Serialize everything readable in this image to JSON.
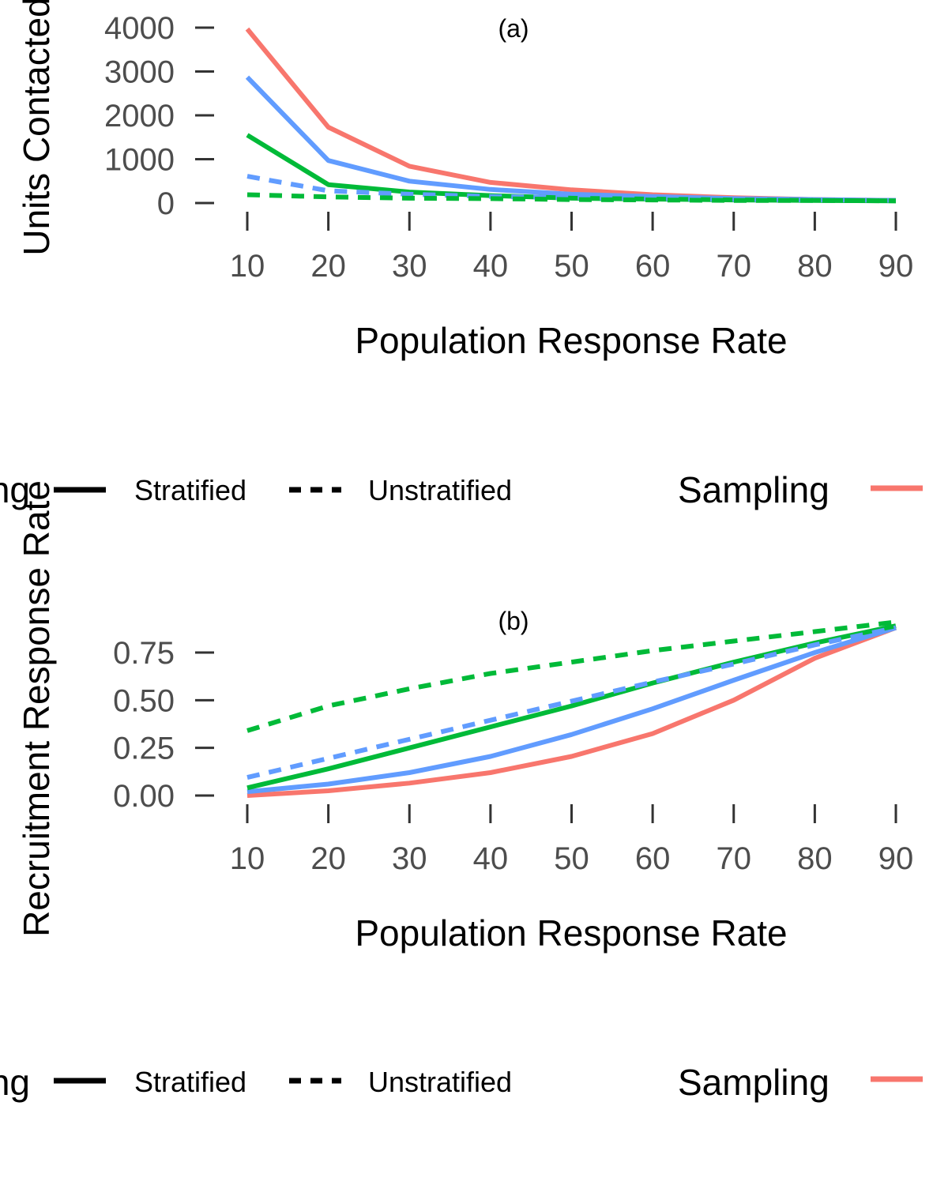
{
  "chart_data": [
    {
      "type": "line",
      "panel_label": "(a)",
      "xlabel": "Population Response Rate",
      "ylabel": "Units Contacted",
      "x": [
        10,
        20,
        30,
        40,
        50,
        60,
        70,
        80,
        90
      ],
      "x_ticks": [
        "10",
        "20",
        "30",
        "40",
        "50",
        "60",
        "70",
        "80",
        "90"
      ],
      "ylim": [
        0,
        4000
      ],
      "y_ticks": [
        "0",
        "1000",
        "2000",
        "3000",
        "4000"
      ],
      "grid": false,
      "series": [
        {
          "color": "#F8766D",
          "linetype": "solid",
          "values": [
            3970,
            1730,
            840,
            470,
            300,
            190,
            120,
            80,
            60
          ]
        },
        {
          "color": "#619CFF",
          "linetype": "solid",
          "values": [
            2870,
            970,
            500,
            310,
            200,
            150,
            100,
            80,
            60
          ]
        },
        {
          "color": "#00BA38",
          "linetype": "solid",
          "values": [
            1550,
            420,
            250,
            170,
            110,
            90,
            70,
            60,
            50
          ]
        },
        {
          "color": "#619CFF",
          "linetype": "dashed",
          "values": [
            610,
            280,
            200,
            150,
            120,
            100,
            80,
            70,
            60
          ]
        },
        {
          "color": "#00BA38",
          "linetype": "dashed",
          "values": [
            190,
            140,
            110,
            100,
            80,
            70,
            60,
            60,
            50
          ]
        }
      ],
      "legend": {
        "linetype_title": "Sampling",
        "linetype_entries": [
          "Stratified",
          "Unstratified"
        ],
        "color_title": "Sampling",
        "placement": "bottom"
      }
    },
    {
      "type": "line",
      "panel_label": "(b)",
      "xlabel": "Population Response Rate",
      "ylabel": "Recruitment Response Rate",
      "x": [
        10,
        20,
        30,
        40,
        50,
        60,
        70,
        80,
        90
      ],
      "x_ticks": [
        "10",
        "20",
        "30",
        "40",
        "50",
        "60",
        "70",
        "80",
        "90"
      ],
      "ylim": [
        0,
        0.75
      ],
      "y_ticks": [
        "0.00",
        "0.25",
        "0.50",
        "0.75"
      ],
      "grid": false,
      "series": [
        {
          "color": "#F8766D",
          "linetype": "solid",
          "values": [
            0.0,
            0.025,
            0.065,
            0.12,
            0.205,
            0.325,
            0.5,
            0.72,
            0.88
          ]
        },
        {
          "color": "#619CFF",
          "linetype": "solid",
          "values": [
            0.02,
            0.06,
            0.12,
            0.205,
            0.32,
            0.455,
            0.605,
            0.75,
            0.88
          ]
        },
        {
          "color": "#00BA38",
          "linetype": "solid",
          "values": [
            0.04,
            0.14,
            0.25,
            0.36,
            0.47,
            0.59,
            0.7,
            0.8,
            0.89
          ]
        },
        {
          "color": "#619CFF",
          "linetype": "dashed",
          "values": [
            0.095,
            0.195,
            0.295,
            0.395,
            0.495,
            0.595,
            0.69,
            0.79,
            0.88
          ]
        },
        {
          "color": "#00BA38",
          "linetype": "dashed",
          "values": [
            0.34,
            0.47,
            0.56,
            0.64,
            0.7,
            0.76,
            0.81,
            0.86,
            0.91
          ]
        }
      ],
      "legend": {
        "linetype_title": "Sampling",
        "linetype_entries": [
          "Stratified",
          "Unstratified"
        ],
        "color_title": "Sampling",
        "placement": "bottom"
      }
    }
  ]
}
